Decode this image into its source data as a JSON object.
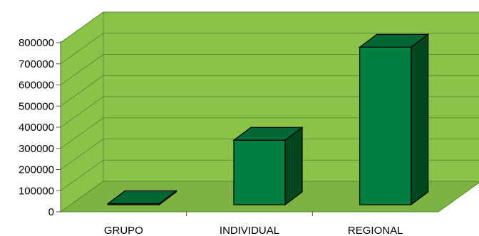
{
  "chart_data": {
    "type": "bar",
    "style": "3d",
    "categories": [
      "GRUPO",
      "INDIVIDUAL",
      "REGIONAL"
    ],
    "values": [
      5000,
      305000,
      745000
    ],
    "ylim": [
      0,
      800000
    ],
    "yticks": [
      "800000",
      "700000",
      "600000",
      "500000",
      "400000",
      "300000",
      "200000",
      "100000",
      "0"
    ],
    "grid": true,
    "legend": "none",
    "colors": {
      "wall": "#8bc34a",
      "floor": "#7cb342",
      "grid": "#5a8f2e",
      "bar_front": "#008040",
      "bar_top": "#006633",
      "bar_side": "#00471f",
      "edge": "#000000"
    }
  }
}
